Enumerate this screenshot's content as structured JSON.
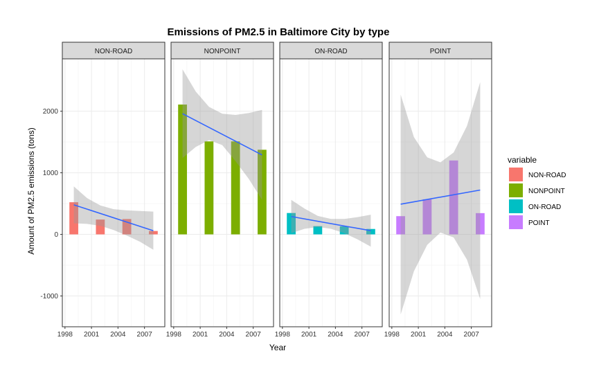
{
  "chart_data": {
    "type": "bar",
    "title": "Emissions of PM2.5 in Baltimore City by type",
    "xlabel": "Year",
    "ylabel": "Amount of PM2.5 emissions (tons)",
    "xlim": [
      1997.7,
      2009.3
    ],
    "ylim": [
      -1500,
      2850
    ],
    "x_ticks": [
      1998,
      2001,
      2004,
      2007
    ],
    "y_ticks": [
      -1000,
      0,
      1000,
      2000
    ],
    "grid": true,
    "legend_position": "right",
    "legend_title": "variable",
    "facets": [
      {
        "name": "NON-ROAD",
        "color": "#F8766D",
        "x": [
          1999,
          2002,
          2005,
          2008
        ],
        "values": [
          522,
          241,
          249,
          55
        ],
        "smooth": {
          "x": [
            1999,
            2008
          ],
          "y": [
            480,
            60
          ]
        },
        "band": {
          "x": [
            1999,
            2000.5,
            2002,
            2003.5,
            2005,
            2006.5,
            2008
          ],
          "upper": [
            780,
            590,
            470,
            410,
            390,
            380,
            370
          ],
          "lower": [
            180,
            170,
            140,
            70,
            -20,
            -120,
            -250
          ]
        }
      },
      {
        "name": "NONPOINT",
        "color": "#7CAE00",
        "x": [
          1999,
          2002,
          2005,
          2008
        ],
        "values": [
          2108,
          1510,
          1510,
          1374
        ],
        "smooth": {
          "x": [
            1999,
            2008
          ],
          "y": [
            1960,
            1290
          ]
        },
        "band": {
          "x": [
            1999,
            2000.5,
            2002,
            2003.5,
            2005,
            2006.5,
            2008
          ],
          "upper": [
            2680,
            2320,
            2070,
            1960,
            1940,
            1970,
            2020
          ],
          "lower": [
            1240,
            1420,
            1530,
            1450,
            1190,
            900,
            560
          ]
        }
      },
      {
        "name": "ON-ROAD",
        "color": "#00BFC4",
        "x": [
          1999,
          2002,
          2005,
          2008
        ],
        "values": [
          347,
          134,
          130,
          88
        ],
        "smooth": {
          "x": [
            1999,
            2008
          ],
          "y": [
            290,
            60
          ]
        },
        "band": {
          "x": [
            1999,
            2000.5,
            2002,
            2003.5,
            2005,
            2006.5,
            2008
          ],
          "upper": [
            560,
            420,
            300,
            250,
            250,
            280,
            320
          ],
          "lower": [
            20,
            90,
            120,
            90,
            20,
            -80,
            -200
          ]
        }
      },
      {
        "name": "POINT",
        "color": "#C77CFF",
        "x": [
          1999,
          2002,
          2005,
          2008
        ],
        "values": [
          296,
          570,
          1200,
          345
        ],
        "smooth": {
          "x": [
            1999,
            2008
          ],
          "y": [
            490,
            720
          ]
        },
        "band": {
          "x": [
            1999,
            2000.5,
            2002,
            2003.5,
            2005,
            2006.5,
            2008
          ],
          "upper": [
            2270,
            1580,
            1250,
            1170,
            1330,
            1760,
            2470
          ],
          "lower": [
            -1300,
            -600,
            -170,
            30,
            -50,
            -410,
            -1050
          ]
        }
      }
    ]
  }
}
